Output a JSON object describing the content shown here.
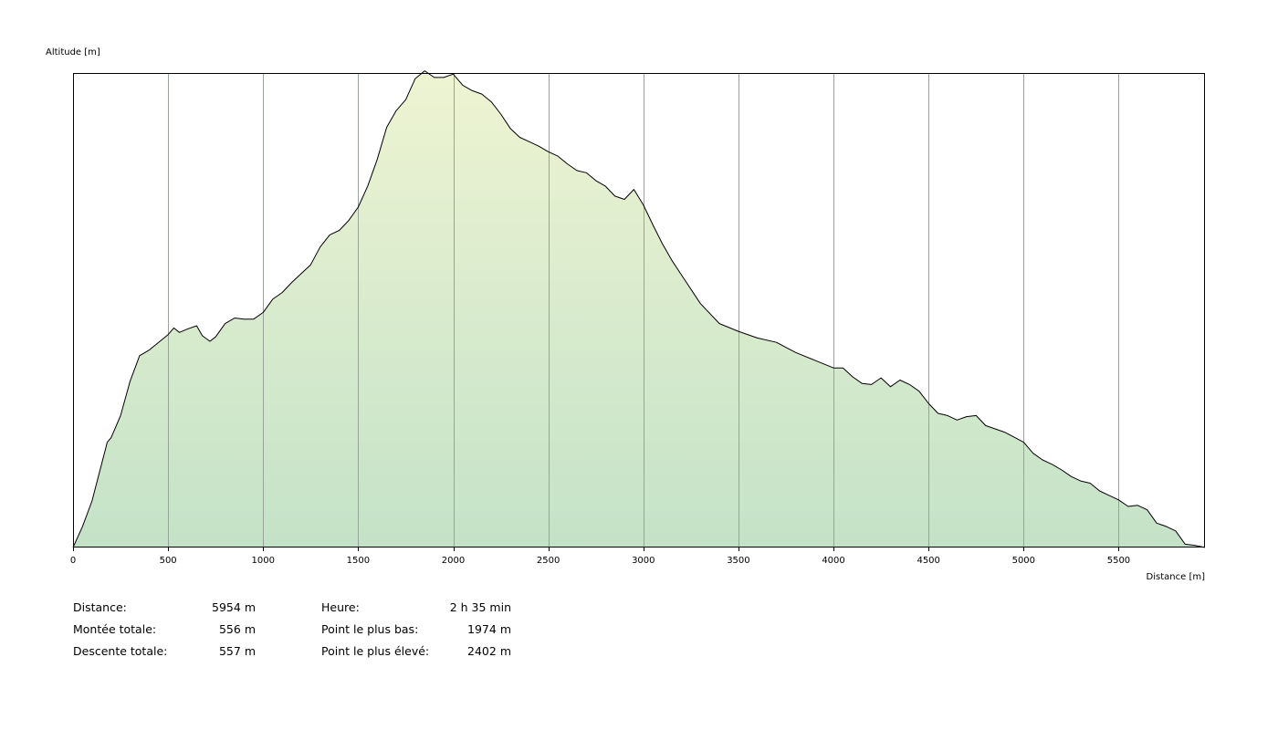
{
  "chart_data": {
    "type": "area",
    "ylabel": "Altitude [m]",
    "xlabel": "Distance [m]",
    "x_ticks": [
      "0",
      "500",
      "1000",
      "1500",
      "2000",
      "2500",
      "3000",
      "3500",
      "4000",
      "4500",
      "5000",
      "5500"
    ],
    "xlim": [
      0,
      5954
    ],
    "ylim": [
      1974,
      2402
    ],
    "grid": "vertical",
    "colors": {
      "fill_top": "#eef4d2",
      "fill_bottom": "#c4e2c8",
      "line": "#000000",
      "grid": "#9aa39a"
    },
    "x": [
      0,
      50,
      100,
      150,
      180,
      200,
      250,
      300,
      350,
      400,
      450,
      500,
      530,
      560,
      600,
      650,
      680,
      720,
      750,
      800,
      850,
      900,
      950,
      1000,
      1050,
      1100,
      1150,
      1200,
      1250,
      1300,
      1350,
      1400,
      1450,
      1500,
      1550,
      1600,
      1650,
      1700,
      1750,
      1800,
      1850,
      1900,
      1950,
      2000,
      2050,
      2100,
      2150,
      2200,
      2250,
      2300,
      2350,
      2400,
      2450,
      2500,
      2550,
      2600,
      2650,
      2700,
      2750,
      2800,
      2850,
      2900,
      2950,
      3000,
      3050,
      3100,
      3150,
      3200,
      3300,
      3400,
      3500,
      3600,
      3700,
      3800,
      3900,
      4000,
      4050,
      4100,
      4150,
      4200,
      4250,
      4300,
      4350,
      4400,
      4450,
      4500,
      4550,
      4600,
      4650,
      4700,
      4750,
      4800,
      4850,
      4900,
      5000,
      5050,
      5100,
      5150,
      5200,
      5250,
      5300,
      5350,
      5400,
      5450,
      5500,
      5550,
      5600,
      5650,
      5700,
      5750,
      5800,
      5850,
      5900,
      5954
    ],
    "values": [
      1974,
      1993,
      2016,
      2049,
      2069,
      2073,
      2093,
      2124,
      2147,
      2152,
      2159,
      2166,
      2172,
      2168,
      2171,
      2174,
      2165,
      2160,
      2164,
      2176,
      2181,
      2180,
      2180,
      2186,
      2198,
      2204,
      2213,
      2221,
      2229,
      2245,
      2256,
      2260,
      2269,
      2281,
      2300,
      2324,
      2353,
      2368,
      2378,
      2397,
      2404,
      2398,
      2398,
      2401,
      2391,
      2386,
      2383,
      2376,
      2365,
      2352,
      2344,
      2340,
      2336,
      2331,
      2327,
      2320,
      2314,
      2312,
      2305,
      2300,
      2291,
      2288,
      2297,
      2283,
      2265,
      2248,
      2233,
      2220,
      2194,
      2176,
      2169,
      2163,
      2159,
      2150,
      2143,
      2136,
      2136,
      2128,
      2122,
      2121,
      2127,
      2119,
      2125,
      2121,
      2115,
      2104,
      2095,
      2093,
      2089,
      2092,
      2093,
      2084,
      2081,
      2078,
      2069,
      2059,
      2053,
      2049,
      2044,
      2038,
      2034,
      2032,
      2025,
      2021,
      2017,
      2011,
      2012,
      2008,
      1996,
      1993,
      1989,
      1977,
      1976,
      1974
    ]
  },
  "stats": {
    "distance_label": "Distance:",
    "distance_value": "5954 m",
    "ascent_label": "Montée totale:",
    "ascent_value": "556 m",
    "descent_label": "Descente totale:",
    "descent_value": "557 m",
    "time_label": "Heure:",
    "time_value": "2 h 35 min",
    "lowest_label": "Point le plus bas:",
    "lowest_value": "1974 m",
    "highest_label": "Point le plus élevé:",
    "highest_value": "2402 m"
  }
}
